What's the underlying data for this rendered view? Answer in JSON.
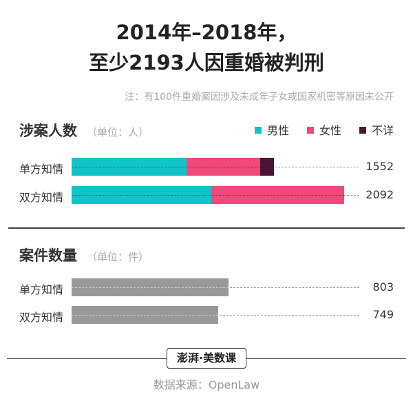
{
  "title_line1": "2014年–2018年，",
  "title_line2": "至少2193人因重婚被判刑",
  "note": "注：有100件重婚案因涉及未成年子女或国家机密等原因未公开",
  "logo_text": "澎湃·美数课",
  "source": "数据来源：OpenLaw",
  "chart_data": [
    {
      "type": "bar",
      "orientation": "horizontal",
      "stacked": true,
      "title": "涉案人数",
      "unit": "（单位：人）",
      "legend_position": "top-right",
      "categories": [
        "单方知情",
        "双方知情"
      ],
      "totals": [
        1552,
        2092
      ],
      "series": [
        {
          "name": "男性",
          "color": "#10c3c8",
          "values": [
            881,
            1072
          ]
        },
        {
          "name": "女性",
          "color": "#f0497a",
          "values": [
            569,
            1020
          ]
        },
        {
          "name": "不详",
          "color": "#4a1535",
          "values": [
            102,
            0
          ]
        }
      ]
    },
    {
      "type": "bar",
      "orientation": "horizontal",
      "title": "案件数量",
      "unit": "（单位：件）",
      "categories": [
        "单方知情",
        "双方知情"
      ],
      "values": [
        803,
        749
      ],
      "color": "#999999"
    }
  ]
}
